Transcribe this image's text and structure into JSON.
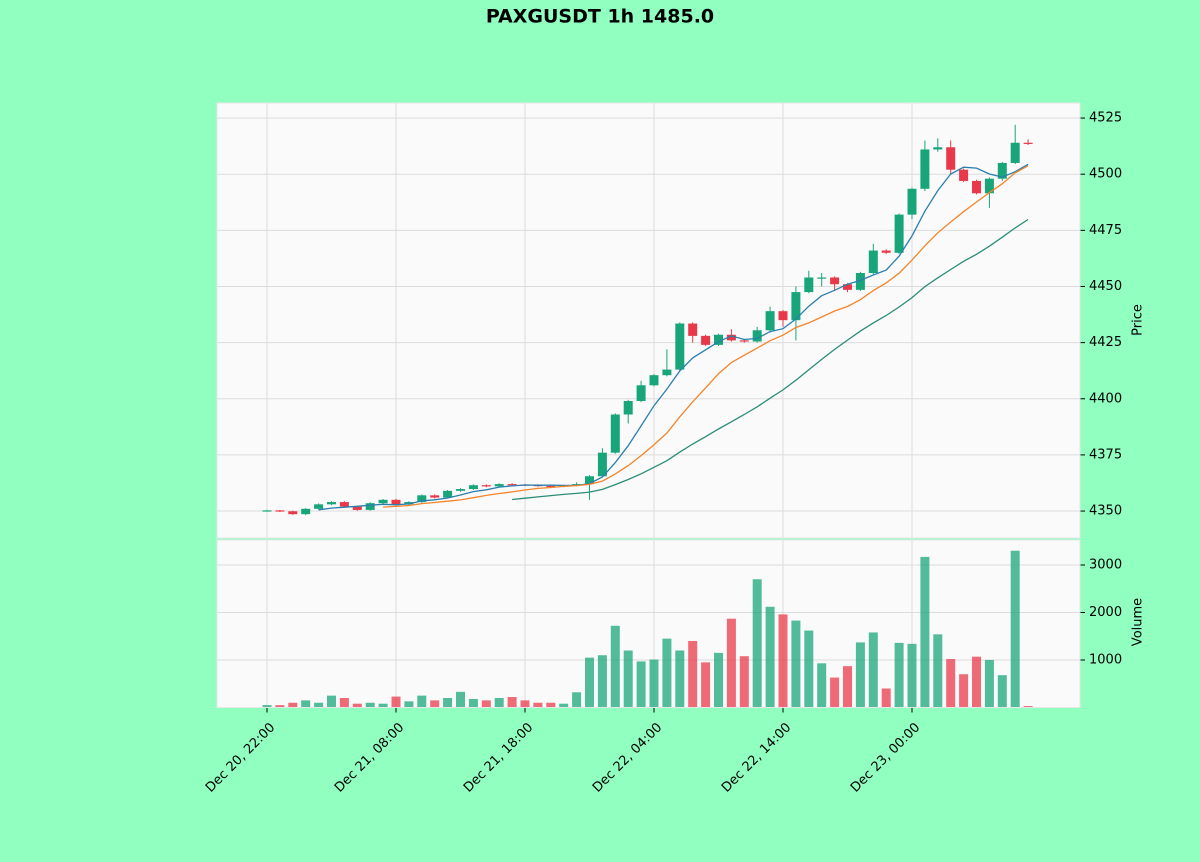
{
  "chart_data": {
    "type": "candlestick",
    "title": "PAXGUSDT 1h 1485.0",
    "ylabel": "Price",
    "categories": [
      "Dec 20, 22:00",
      null,
      null,
      null,
      null,
      null,
      null,
      null,
      null,
      null,
      "Dec 21, 08:00",
      null,
      null,
      null,
      null,
      null,
      null,
      null,
      null,
      null,
      "Dec 21, 18:00",
      null,
      null,
      null,
      null,
      null,
      null,
      null,
      null,
      null,
      "Dec 22, 04:00",
      null,
      null,
      null,
      null,
      null,
      null,
      null,
      null,
      null,
      "Dec 22, 14:00",
      null,
      null,
      null,
      null,
      null,
      null,
      null,
      null,
      null,
      "Dec 23, 00:00",
      null,
      null,
      null,
      null,
      null,
      null,
      null,
      null,
      null
    ],
    "open": [
      4350.1,
      4350.3,
      4349.9,
      4348.6,
      4351.0,
      4353.0,
      4354.0,
      4352.0,
      4350.5,
      4353.5,
      4355.0,
      4353.0,
      4354.0,
      4357.0,
      4356.0,
      4359.0,
      4359.8,
      4361.5,
      4361.0,
      4362.0,
      4361.8,
      4361.6,
      4361.2,
      4361.0,
      4361.4,
      4362.0,
      4365.5,
      4376.0,
      4393.0,
      4399.0,
      4406.0,
      4410.5,
      4413.0,
      4433.5,
      4428.0,
      4424.0,
      4428.5,
      4426.0,
      4425.5,
      4430.5,
      4439.0,
      4435.0,
      4447.5,
      4454.0,
      4454.0,
      4451.0,
      4448.5,
      4456.0,
      4466.0,
      4465.0,
      4482.0,
      4493.5,
      4511.0,
      4512.0,
      4502.0,
      4497.0,
      4491.5,
      4498.0,
      4505.0,
      4514.0
    ],
    "high": [
      4350.5,
      4350.5,
      4350.2,
      4351.3,
      4353.4,
      4354.4,
      4354.4,
      4352.4,
      4353.9,
      4355.4,
      4355.4,
      4354.4,
      4357.4,
      4357.4,
      4359.4,
      4360.2,
      4361.9,
      4361.9,
      4362.4,
      4362.4,
      4362.1,
      4361.9,
      4361.6,
      4361.7,
      4362.8,
      4366.0,
      4378.0,
      4393.5,
      4399.5,
      4408.0,
      4411.0,
      4422.0,
      4434.0,
      4434.0,
      4428.5,
      4429.0,
      4431.0,
      4426.5,
      4432.0,
      4441.0,
      4439.5,
      4450.0,
      4457.0,
      4456.0,
      4454.5,
      4451.5,
      4456.5,
      4469.0,
      4466.5,
      4482.5,
      4494.0,
      4515.0,
      4516.0,
      4515.0,
      4502.5,
      4497.5,
      4498.5,
      4505.5,
      4522.0,
      4515.5
    ],
    "low": [
      4349.8,
      4349.6,
      4348.3,
      4348.2,
      4350.6,
      4352.6,
      4351.6,
      4350.1,
      4350.1,
      4353.1,
      4352.6,
      4352.6,
      4353.6,
      4355.6,
      4355.6,
      4358.6,
      4359.4,
      4360.6,
      4360.6,
      4361.4,
      4361.2,
      4360.8,
      4360.6,
      4360.6,
      4361.0,
      4355.0,
      4365.0,
      4375.5,
      4389.0,
      4398.5,
      4405.5,
      4410.0,
      4412.5,
      4425.0,
      4423.5,
      4423.5,
      4425.5,
      4425.0,
      4425.0,
      4429.5,
      4432.0,
      4426.0,
      4447.0,
      4450.0,
      4448.0,
      4447.5,
      4448.0,
      4455.5,
      4464.5,
      4464.5,
      4480.0,
      4492.5,
      4510.0,
      4500.0,
      4496.5,
      4491.0,
      4485.0,
      4497.0,
      4504.5,
      4513.0
    ],
    "close": [
      4350.3,
      4349.9,
      4348.6,
      4351.0,
      4353.0,
      4354.0,
      4352.0,
      4350.5,
      4353.5,
      4355.0,
      4353.0,
      4354.0,
      4357.0,
      4356.0,
      4359.0,
      4359.8,
      4361.5,
      4361.0,
      4362.0,
      4361.8,
      4361.6,
      4361.2,
      4361.0,
      4361.4,
      4362.0,
      4365.5,
      4376.0,
      4393.0,
      4399.0,
      4406.0,
      4410.5,
      4413.0,
      4433.5,
      4428.0,
      4424.0,
      4428.5,
      4426.0,
      4425.5,
      4430.5,
      4439.0,
      4435.0,
      4447.5,
      4454.0,
      4454.0,
      4451.0,
      4448.5,
      4456.0,
      4466.0,
      4465.0,
      4482.0,
      4493.5,
      4511.0,
      4512.0,
      4502.0,
      4497.0,
      4491.5,
      4498.0,
      4505.0,
      4514.0,
      4513.5
    ],
    "up_color": "#18a57a",
    "down_color": "#e8394a",
    "series": [
      {
        "color": "#2a7fae",
        "values": [
          null,
          null,
          null,
          null,
          4350.56,
          4351.3,
          4351.72,
          4352.1,
          4352.6,
          4353.0,
          4352.8,
          4353.2,
          4354.5,
          4355.0,
          4355.8,
          4357.16,
          4358.66,
          4359.46,
          4360.66,
          4361.22,
          4361.58,
          4361.52,
          4361.52,
          4361.4,
          4361.44,
          4362.22,
          4365.18,
          4371.58,
          4379.1,
          4387.9,
          4396.9,
          4404.3,
          4412.4,
          4418.2,
          4421.8,
          4425.4,
          4428.0,
          4426.4,
          4426.9,
          4429.9,
          4431.2,
          4435.5,
          4441.2,
          4445.9,
          4448.3,
          4451.0,
          4452.7,
          4455.1,
          4457.3,
          4463.5,
          4472.5,
          4483.5,
          4492.7,
          4500.1,
          4503.1,
          4502.7,
          4500.1,
          4498.7,
          4501.1,
          4504.4
        ]
      },
      {
        "color": "#f5842a",
        "values": [
          null,
          null,
          null,
          null,
          null,
          null,
          null,
          null,
          null,
          4351.78,
          4352.05,
          4352.46,
          4353.3,
          4353.8,
          4354.4,
          4354.98,
          4355.93,
          4356.98,
          4357.83,
          4358.51,
          4359.37,
          4360.09,
          4360.49,
          4361.03,
          4361.33,
          4361.9,
          4363.35,
          4366.55,
          4370.25,
          4374.67,
          4379.56,
          4384.74,
          4391.99,
          4398.65,
          4404.85,
          4411.15,
          4416.15,
          4419.4,
          4422.55,
          4425.85,
          4428.3,
          4431.75,
          4433.8,
          4436.4,
          4439.1,
          4441.1,
          4444.1,
          4448.15,
          4451.6,
          4455.9,
          4461.75,
          4468.1,
          4473.9,
          4478.7,
          4483.3,
          4487.6,
          4491.8,
          4495.7,
          4500.6,
          4503.75
        ]
      },
      {
        "color": "#2b8c78",
        "values": [
          null,
          null,
          null,
          null,
          null,
          null,
          null,
          null,
          null,
          null,
          null,
          null,
          null,
          null,
          null,
          null,
          null,
          null,
          null,
          4355.15,
          4355.71,
          4356.28,
          4356.9,
          4357.42,
          4357.87,
          4358.44,
          4359.64,
          4361.77,
          4364.04,
          4366.59,
          4369.47,
          4372.42,
          4376.24,
          4379.84,
          4383.09,
          4386.53,
          4389.75,
          4392.98,
          4396.4,
          4400.26,
          4403.93,
          4408.25,
          4412.9,
          4417.53,
          4421.98,
          4426.13,
          4430.13,
          4433.78,
          4437.08,
          4440.88,
          4445.03,
          4449.93,
          4453.85,
          4457.55,
          4461.2,
          4464.35,
          4467.95,
          4471.93,
          4476.1,
          4479.83
        ]
      }
    ],
    "ylim": [
      4338.0,
      4531.7
    ],
    "yticks": [
      4350,
      4375,
      4400,
      4425,
      4450,
      4475,
      4500,
      4525
    ],
    "grid": true,
    "volume": {
      "ylabel": "Volume",
      "values": [
        50,
        50,
        100,
        150,
        100,
        250,
        200,
        80,
        100,
        80,
        230,
        130,
        250,
        150,
        200,
        330,
        180,
        150,
        200,
        220,
        150,
        100,
        100,
        80,
        320,
        1050,
        1100,
        1720,
        1200,
        970,
        1010,
        1450,
        1200,
        1400,
        950,
        1150,
        1870,
        1080,
        2700,
        2120,
        1960,
        1830,
        1620,
        930,
        630,
        870,
        1370,
        1580,
        400,
        1360,
        1340,
        3170,
        1540,
        1020,
        700,
        1070,
        1000,
        680,
        3300,
        30
      ],
      "ylim": [
        0,
        3526
      ],
      "yticks": [
        1000,
        2000,
        3000
      ]
    }
  }
}
